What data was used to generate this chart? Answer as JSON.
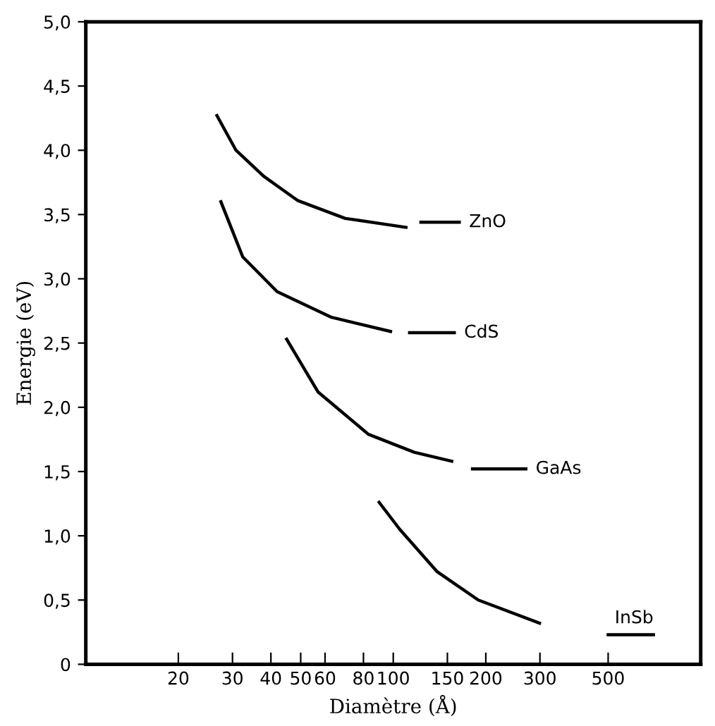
{
  "chart_data": {
    "type": "line",
    "xlabel": "Diamètre (Å)",
    "ylabel": "Energie (eV)",
    "log": "x",
    "xlim": [
      10,
      1000
    ],
    "ylim": [
      0,
      5
    ],
    "xticks": [
      20,
      30,
      40,
      50,
      60,
      80,
      100,
      150,
      200,
      300,
      500
    ],
    "yticks": [
      0,
      {
        "value": 0.5,
        "label": "0,5"
      },
      {
        "value": 1,
        "label": "1,0"
      },
      {
        "value": 1.5,
        "label": "1,5"
      },
      {
        "value": 2,
        "label": "2,0"
      },
      {
        "value": 2.5,
        "label": "2,5"
      },
      {
        "value": 3,
        "label": "3,0"
      },
      {
        "value": 3.5,
        "label": "3,5"
      },
      {
        "value": 4,
        "label": "4,0"
      },
      {
        "value": 4.5,
        "label": "4,5"
      },
      {
        "value": 5,
        "label": "5,0"
      }
    ],
    "grid": false,
    "legend": false,
    "marker": "none",
    "line_style": "solid",
    "series": [
      {
        "color": "#000000",
        "x": [
          26.7,
          30.8,
          37.8,
          48.8,
          69.8,
          110
        ],
        "values": [
          4.27,
          4.0,
          3.8,
          3.61,
          3.47,
          3.4
        ]
      },
      {
        "name": "ZnO",
        "color": "#000000",
        "x": [
          123,
          164
        ],
        "values": [
          3.44,
          3.44
        ]
      },
      {
        "color": "#000000",
        "x": [
          27.5,
          32.4,
          41.9,
          63,
          98
        ],
        "values": [
          3.6,
          3.17,
          2.9,
          2.7,
          2.59
        ]
      },
      {
        "name": "CdS",
        "color": "#000000",
        "x": [
          113,
          158
        ],
        "values": [
          2.58,
          2.58
        ]
      },
      {
        "color": "#000000",
        "x": [
          45,
          56.9,
          83,
          117,
          155
        ],
        "values": [
          2.53,
          2.12,
          1.79,
          1.65,
          1.58
        ]
      },
      {
        "name": "GaAs",
        "color": "#000000",
        "x": [
          181,
          270
        ],
        "values": [
          1.52,
          1.52
        ]
      },
      {
        "color": "#000000",
        "x": [
          90,
          105,
          139,
          189,
          299
        ],
        "values": [
          1.26,
          1.05,
          0.72,
          0.5,
          0.32
        ]
      },
      {
        "name": "InSb",
        "color": "#000000",
        "x": [
          500,
          702
        ],
        "values": [
          0.23,
          0.23
        ]
      }
    ]
  }
}
